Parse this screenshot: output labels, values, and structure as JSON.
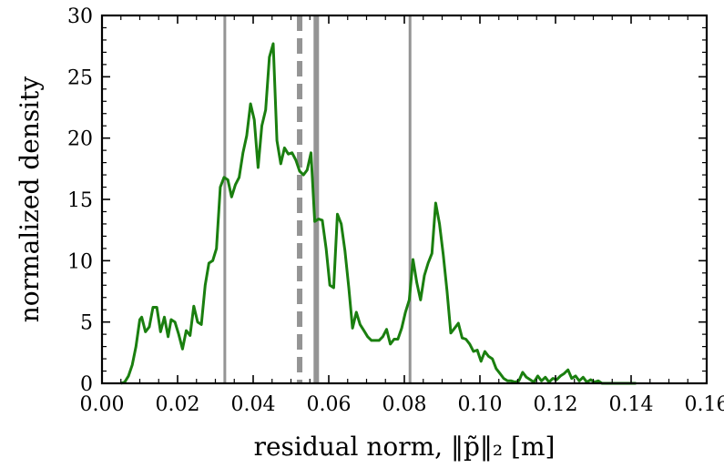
{
  "chart_data": {
    "type": "line",
    "xlabel": "residual norm, ‖p̃‖₂ [m]",
    "ylabel": "normalized density",
    "xlim": [
      0.0,
      0.16
    ],
    "ylim": [
      0,
      30
    ],
    "xticks": [
      0.0,
      0.02,
      0.04,
      0.06,
      0.08,
      0.1,
      0.12,
      0.14,
      0.16
    ],
    "xtick_labels": [
      "0.00",
      "0.02",
      "0.04",
      "0.06",
      "0.08",
      "0.10",
      "0.12",
      "0.14",
      "0.16"
    ],
    "yticks": [
      0,
      5,
      10,
      15,
      20,
      25,
      30
    ],
    "ytick_labels": [
      "0",
      "5",
      "10",
      "15",
      "20",
      "25",
      "30"
    ],
    "grid": false,
    "series": [
      {
        "color": "#1a7f0f",
        "x": [
          0.005,
          0.006,
          0.007,
          0.008,
          0.009,
          0.01,
          0.0105,
          0.0115,
          0.0125,
          0.0135,
          0.0145,
          0.0155,
          0.0165,
          0.0175,
          0.0183,
          0.0193,
          0.0203,
          0.0213,
          0.0223,
          0.0233,
          0.0243,
          0.0253,
          0.0263,
          0.0273,
          0.0283,
          0.0293,
          0.0303,
          0.0313,
          0.0323,
          0.0333,
          0.0343,
          0.0353,
          0.0363,
          0.0373,
          0.0383,
          0.0393,
          0.0403,
          0.0413,
          0.0423,
          0.0433,
          0.0443,
          0.0453,
          0.0463,
          0.0473,
          0.0483,
          0.0493,
          0.0503,
          0.0513,
          0.0523,
          0.0533,
          0.0543,
          0.0553,
          0.0563,
          0.0573,
          0.0583,
          0.0593,
          0.0603,
          0.0613,
          0.0623,
          0.0633,
          0.0643,
          0.0653,
          0.0663,
          0.0673,
          0.0683,
          0.0693,
          0.0703,
          0.0713,
          0.0723,
          0.0733,
          0.0743,
          0.0753,
          0.0763,
          0.0773,
          0.0783,
          0.0793,
          0.0803,
          0.0813,
          0.0823,
          0.0833,
          0.0843,
          0.0853,
          0.0863,
          0.0873,
          0.0883,
          0.0893,
          0.0903,
          0.0913,
          0.0923,
          0.0933,
          0.0943,
          0.0953,
          0.0963,
          0.0973,
          0.0983,
          0.0993,
          0.1003,
          0.1013,
          0.1023,
          0.1033,
          0.1043,
          0.1053,
          0.1063,
          0.1073,
          0.1083,
          0.1093,
          0.1103,
          0.1113,
          0.1123,
          0.1133,
          0.1143,
          0.1153,
          0.1163,
          0.1173,
          0.1183,
          0.1193,
          0.1203,
          0.1213,
          0.1223,
          0.1233,
          0.1243,
          0.1253,
          0.1263,
          0.1273,
          0.1283,
          0.1293,
          0.1303,
          0.1313,
          0.1323,
          0.1333,
          0.1343,
          0.1353,
          0.1363,
          0.1373,
          0.1383,
          0.1393,
          0.1403,
          0.1413
        ],
        "values": [
          0.0,
          0.1,
          0.6,
          1.5,
          3.0,
          5.2,
          5.4,
          4.2,
          4.6,
          6.2,
          6.2,
          4.2,
          5.4,
          3.8,
          5.2,
          5.0,
          4.0,
          2.8,
          4.3,
          3.9,
          6.3,
          5.0,
          4.8,
          8.0,
          9.8,
          10.0,
          11.0,
          16.0,
          16.8,
          16.6,
          15.2,
          16.2,
          16.8,
          18.8,
          20.2,
          22.8,
          21.5,
          17.6,
          21.0,
          22.3,
          26.6,
          27.7,
          19.8,
          17.9,
          19.2,
          18.7,
          18.8,
          18.2,
          17.3,
          17.0,
          17.4,
          18.8,
          13.2,
          13.4,
          13.3,
          11.0,
          8.0,
          7.8,
          13.8,
          13.0,
          10.8,
          7.8,
          4.5,
          5.8,
          4.8,
          4.3,
          3.8,
          3.5,
          3.5,
          3.5,
          3.8,
          4.4,
          3.2,
          3.6,
          3.6,
          4.5,
          5.8,
          6.8,
          10.1,
          8.2,
          6.8,
          8.8,
          9.8,
          10.6,
          14.7,
          13.0,
          10.5,
          7.5,
          4.1,
          4.5,
          4.9,
          3.7,
          3.6,
          3.2,
          2.6,
          2.7,
          1.8,
          2.6,
          2.2,
          2.0,
          1.2,
          0.8,
          0.4,
          0.2,
          0.2,
          0.1,
          0.2,
          0.9,
          0.5,
          0.3,
          0.1,
          0.6,
          0.2,
          0.5,
          0.1,
          0.4,
          0.3,
          0.6,
          0.8,
          1.1,
          0.4,
          0.6,
          0.2,
          0.5,
          0.1,
          0.3,
          0.1,
          0.2,
          0.0,
          0.0,
          0.0,
          0.0,
          0.0,
          0.0,
          0.0,
          0.0,
          0.0,
          0.0
        ]
      }
    ],
    "vlines": [
      {
        "x": 0.0325,
        "style": "solid",
        "color": "#949494",
        "weight": "thin"
      },
      {
        "x": 0.0523,
        "style": "dashed",
        "color": "#949494",
        "weight": "thick"
      },
      {
        "x": 0.0567,
        "style": "solid",
        "color": "#949494",
        "weight": "thick"
      },
      {
        "x": 0.0815,
        "style": "solid",
        "color": "#949494",
        "weight": "thin"
      }
    ]
  }
}
